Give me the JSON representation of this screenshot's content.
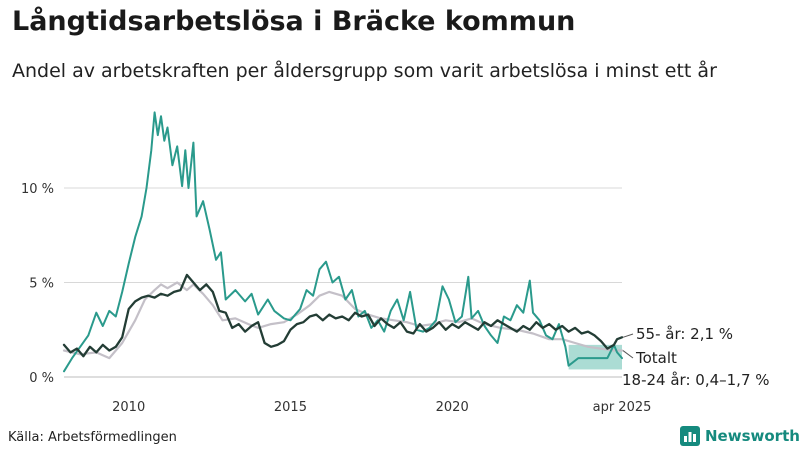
{
  "title": "Långtidsarbetslösa i Bräcke kommun",
  "subtitle": "Andel av arbetskraften per åldersgrupp som varit arbetslösa i minst ett år",
  "source": "Källa: Arbetsförmedlingen",
  "brand": "Newsworthy",
  "colors": {
    "young": "#2a9a8c",
    "total": "#c4c0c8",
    "old": "#233d35",
    "band": "#8fd0c6",
    "grid": "#d8d8d8",
    "brand": "#158a7e"
  },
  "chart_data": {
    "type": "line",
    "x_unit": "year",
    "ylim": [
      0,
      14
    ],
    "yticks": [
      0,
      5,
      10
    ],
    "yticklabels": [
      "0 %",
      "5 %",
      "10 %"
    ],
    "xticks": [
      2010,
      2015,
      2020,
      2025.25
    ],
    "xticklabels": [
      "2010",
      "2015",
      "2020",
      "apr 2025"
    ],
    "series": [
      {
        "name": "18-24 år",
        "label": "18-24 år: 0,4–1,7 %",
        "color": "#2a9a8c",
        "points": [
          [
            2008.0,
            0.3
          ],
          [
            2008.25,
            1.0
          ],
          [
            2008.5,
            1.6
          ],
          [
            2008.75,
            2.2
          ],
          [
            2009.0,
            3.4
          ],
          [
            2009.2,
            2.7
          ],
          [
            2009.4,
            3.5
          ],
          [
            2009.6,
            3.2
          ],
          [
            2009.8,
            4.5
          ],
          [
            2010.0,
            6.0
          ],
          [
            2010.2,
            7.4
          ],
          [
            2010.4,
            8.5
          ],
          [
            2010.55,
            10.0
          ],
          [
            2010.7,
            12.0
          ],
          [
            2010.8,
            14.0
          ],
          [
            2010.9,
            12.8
          ],
          [
            2011.0,
            13.8
          ],
          [
            2011.1,
            12.5
          ],
          [
            2011.2,
            13.2
          ],
          [
            2011.35,
            11.2
          ],
          [
            2011.5,
            12.2
          ],
          [
            2011.65,
            10.1
          ],
          [
            2011.75,
            12.0
          ],
          [
            2011.85,
            10.0
          ],
          [
            2012.0,
            12.4
          ],
          [
            2012.1,
            8.5
          ],
          [
            2012.3,
            9.3
          ],
          [
            2012.5,
            7.8
          ],
          [
            2012.7,
            6.2
          ],
          [
            2012.85,
            6.6
          ],
          [
            2013.0,
            4.1
          ],
          [
            2013.3,
            4.6
          ],
          [
            2013.6,
            4.0
          ],
          [
            2013.8,
            4.4
          ],
          [
            2014.0,
            3.3
          ],
          [
            2014.3,
            4.1
          ],
          [
            2014.5,
            3.5
          ],
          [
            2014.8,
            3.1
          ],
          [
            2015.0,
            3.0
          ],
          [
            2015.3,
            3.6
          ],
          [
            2015.5,
            4.6
          ],
          [
            2015.7,
            4.3
          ],
          [
            2015.9,
            5.7
          ],
          [
            2016.1,
            6.1
          ],
          [
            2016.3,
            5.0
          ],
          [
            2016.5,
            5.3
          ],
          [
            2016.7,
            4.1
          ],
          [
            2016.9,
            4.6
          ],
          [
            2017.1,
            3.2
          ],
          [
            2017.3,
            3.5
          ],
          [
            2017.5,
            2.6
          ],
          [
            2017.7,
            3.0
          ],
          [
            2017.9,
            2.4
          ],
          [
            2018.1,
            3.5
          ],
          [
            2018.3,
            4.1
          ],
          [
            2018.5,
            3.0
          ],
          [
            2018.7,
            4.5
          ],
          [
            2018.9,
            2.5
          ],
          [
            2019.1,
            2.4
          ],
          [
            2019.3,
            2.6
          ],
          [
            2019.5,
            3.0
          ],
          [
            2019.7,
            4.8
          ],
          [
            2019.9,
            4.1
          ],
          [
            2020.1,
            2.9
          ],
          [
            2020.3,
            3.2
          ],
          [
            2020.5,
            5.3
          ],
          [
            2020.6,
            3.1
          ],
          [
            2020.8,
            3.5
          ],
          [
            2021.0,
            2.7
          ],
          [
            2021.2,
            2.2
          ],
          [
            2021.4,
            1.8
          ],
          [
            2021.6,
            3.2
          ],
          [
            2021.8,
            3.0
          ],
          [
            2022.0,
            3.8
          ],
          [
            2022.2,
            3.4
          ],
          [
            2022.4,
            5.1
          ],
          [
            2022.5,
            3.4
          ],
          [
            2022.7,
            3.0
          ],
          [
            2022.9,
            2.2
          ],
          [
            2023.1,
            2.0
          ],
          [
            2023.3,
            2.8
          ],
          [
            2023.5,
            1.6
          ],
          [
            2023.6,
            0.6
          ],
          [
            2023.9,
            1.0
          ],
          [
            2024.2,
            1.0
          ],
          [
            2024.5,
            1.0
          ],
          [
            2024.8,
            1.0
          ],
          [
            2025.0,
            1.7
          ],
          [
            2025.1,
            1.3
          ],
          [
            2025.25,
            1.0
          ]
        ]
      },
      {
        "name": "Totalt",
        "label": "Totalt",
        "color": "#c4c0c8",
        "points": [
          [
            2008.0,
            1.4
          ],
          [
            2008.5,
            1.2
          ],
          [
            2009.0,
            1.3
          ],
          [
            2009.4,
            1.0
          ],
          [
            2009.8,
            1.8
          ],
          [
            2010.2,
            3.0
          ],
          [
            2010.5,
            4.1
          ],
          [
            2010.8,
            4.6
          ],
          [
            2011.0,
            4.9
          ],
          [
            2011.2,
            4.7
          ],
          [
            2011.5,
            5.0
          ],
          [
            2011.8,
            4.6
          ],
          [
            2012.0,
            4.9
          ],
          [
            2012.3,
            4.4
          ],
          [
            2012.6,
            3.8
          ],
          [
            2012.9,
            3.0
          ],
          [
            2013.3,
            3.1
          ],
          [
            2013.7,
            2.8
          ],
          [
            2014.0,
            2.6
          ],
          [
            2014.4,
            2.8
          ],
          [
            2014.8,
            2.9
          ],
          [
            2015.2,
            3.3
          ],
          [
            2015.6,
            3.8
          ],
          [
            2015.9,
            4.3
          ],
          [
            2016.2,
            4.5
          ],
          [
            2016.6,
            4.3
          ],
          [
            2017.0,
            3.6
          ],
          [
            2017.4,
            3.3
          ],
          [
            2017.8,
            3.1
          ],
          [
            2018.2,
            3.0
          ],
          [
            2018.6,
            2.9
          ],
          [
            2019.0,
            2.7
          ],
          [
            2019.4,
            2.8
          ],
          [
            2019.8,
            3.0
          ],
          [
            2020.2,
            2.9
          ],
          [
            2020.6,
            3.1
          ],
          [
            2021.0,
            2.8
          ],
          [
            2021.5,
            2.6
          ],
          [
            2022.0,
            2.5
          ],
          [
            2022.5,
            2.3
          ],
          [
            2023.0,
            2.0
          ],
          [
            2023.4,
            2.0
          ],
          [
            2023.8,
            1.8
          ],
          [
            2024.2,
            1.6
          ],
          [
            2024.6,
            1.5
          ],
          [
            2025.0,
            1.4
          ],
          [
            2025.25,
            1.4
          ]
        ]
      },
      {
        "name": "55- år",
        "label": "55- år: 2,1 %",
        "color": "#233d35",
        "points": [
          [
            2008.0,
            1.7
          ],
          [
            2008.2,
            1.3
          ],
          [
            2008.4,
            1.5
          ],
          [
            2008.6,
            1.1
          ],
          [
            2008.8,
            1.6
          ],
          [
            2009.0,
            1.3
          ],
          [
            2009.2,
            1.7
          ],
          [
            2009.4,
            1.4
          ],
          [
            2009.6,
            1.6
          ],
          [
            2009.8,
            2.1
          ],
          [
            2010.0,
            3.6
          ],
          [
            2010.2,
            4.0
          ],
          [
            2010.4,
            4.2
          ],
          [
            2010.6,
            4.3
          ],
          [
            2010.8,
            4.2
          ],
          [
            2011.0,
            4.4
          ],
          [
            2011.2,
            4.3
          ],
          [
            2011.4,
            4.5
          ],
          [
            2011.6,
            4.6
          ],
          [
            2011.8,
            5.4
          ],
          [
            2012.0,
            5.0
          ],
          [
            2012.2,
            4.6
          ],
          [
            2012.4,
            4.9
          ],
          [
            2012.6,
            4.5
          ],
          [
            2012.8,
            3.5
          ],
          [
            2013.0,
            3.4
          ],
          [
            2013.2,
            2.6
          ],
          [
            2013.4,
            2.8
          ],
          [
            2013.6,
            2.4
          ],
          [
            2013.8,
            2.7
          ],
          [
            2014.0,
            2.9
          ],
          [
            2014.2,
            1.8
          ],
          [
            2014.4,
            1.6
          ],
          [
            2014.6,
            1.7
          ],
          [
            2014.8,
            1.9
          ],
          [
            2015.0,
            2.5
          ],
          [
            2015.2,
            2.8
          ],
          [
            2015.4,
            2.9
          ],
          [
            2015.6,
            3.2
          ],
          [
            2015.8,
            3.3
          ],
          [
            2016.0,
            3.0
          ],
          [
            2016.2,
            3.3
          ],
          [
            2016.4,
            3.1
          ],
          [
            2016.6,
            3.2
          ],
          [
            2016.8,
            3.0
          ],
          [
            2017.0,
            3.4
          ],
          [
            2017.2,
            3.2
          ],
          [
            2017.4,
            3.3
          ],
          [
            2017.6,
            2.7
          ],
          [
            2017.8,
            3.1
          ],
          [
            2018.0,
            2.8
          ],
          [
            2018.2,
            2.6
          ],
          [
            2018.4,
            2.9
          ],
          [
            2018.6,
            2.4
          ],
          [
            2018.8,
            2.3
          ],
          [
            2019.0,
            2.8
          ],
          [
            2019.2,
            2.4
          ],
          [
            2019.4,
            2.6
          ],
          [
            2019.6,
            2.9
          ],
          [
            2019.8,
            2.5
          ],
          [
            2020.0,
            2.8
          ],
          [
            2020.2,
            2.6
          ],
          [
            2020.4,
            2.9
          ],
          [
            2020.6,
            2.7
          ],
          [
            2020.8,
            2.5
          ],
          [
            2021.0,
            2.9
          ],
          [
            2021.2,
            2.7
          ],
          [
            2021.4,
            3.0
          ],
          [
            2021.6,
            2.8
          ],
          [
            2021.8,
            2.6
          ],
          [
            2022.0,
            2.4
          ],
          [
            2022.2,
            2.7
          ],
          [
            2022.4,
            2.5
          ],
          [
            2022.6,
            2.9
          ],
          [
            2022.8,
            2.6
          ],
          [
            2023.0,
            2.8
          ],
          [
            2023.2,
            2.5
          ],
          [
            2023.4,
            2.7
          ],
          [
            2023.6,
            2.4
          ],
          [
            2023.8,
            2.6
          ],
          [
            2024.0,
            2.3
          ],
          [
            2024.2,
            2.4
          ],
          [
            2024.4,
            2.2
          ],
          [
            2024.6,
            1.9
          ],
          [
            2024.8,
            1.5
          ],
          [
            2025.0,
            1.7
          ],
          [
            2025.1,
            2.0
          ],
          [
            2025.25,
            2.1
          ]
        ]
      }
    ],
    "band": {
      "name": "18-24 år",
      "x": [
        2023.6,
        2025.25
      ],
      "points_low": [
        [
          2023.6,
          0.4
        ],
        [
          2025.25,
          0.4
        ]
      ],
      "points_high": [
        [
          2023.6,
          1.7
        ],
        [
          2025.25,
          1.7
        ]
      ]
    }
  }
}
